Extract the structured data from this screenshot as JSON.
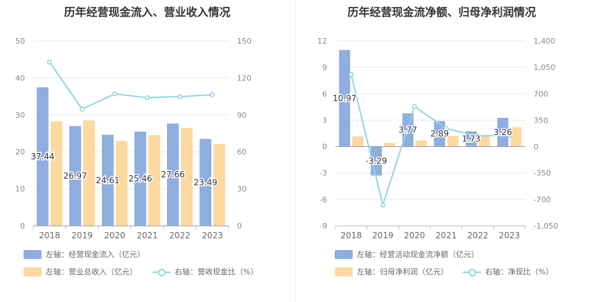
{
  "titles": {
    "left": "历年经营现金流入、营业收入情况",
    "right": "历年经营现金流净额、归母净利润情况"
  },
  "colors": {
    "bar_blue": "#8eaee0",
    "bar_orange": "#fdd9a0",
    "line_cyan": "#8fd6dd",
    "axis_text": "#888888",
    "grid": "#e8e8ee"
  },
  "legend": {
    "left": [
      "左轴：经营现金流入（亿元）",
      "左轴：营业总收入（亿元）",
      "右轴：营收现金比（%）"
    ],
    "right": [
      "左轴：经营活动现金流净额（亿元）",
      "左轴：归母净利润（亿元）",
      "右轴：净现比（%）"
    ]
  },
  "chart_data": [
    {
      "type": "bar",
      "title": "历年经营现金流入、营业收入情况",
      "categories": [
        "2018",
        "2019",
        "2020",
        "2021",
        "2022",
        "2023"
      ],
      "left_axis": {
        "ylim": [
          0,
          50
        ],
        "ticks": [
          "0",
          "10",
          "20",
          "30",
          "40",
          "50"
        ]
      },
      "right_axis": {
        "ylim": [
          0,
          150
        ],
        "ticks": [
          "0",
          "30",
          "60",
          "90",
          "120",
          "150"
        ]
      },
      "series": [
        {
          "name": "左轴：经营现金流入（亿元）",
          "kind": "bar",
          "axis": "left",
          "values": [
            37.44,
            26.97,
            24.61,
            25.46,
            27.66,
            23.49
          ],
          "labels": [
            "37.44",
            "26.97",
            "24.61",
            "25.46",
            "27.66",
            "23.49"
          ]
        },
        {
          "name": "左轴：营业总收入（亿元）",
          "kind": "bar",
          "axis": "left",
          "values": [
            28.2,
            28.5,
            23.0,
            24.5,
            26.4,
            22.1
          ]
        },
        {
          "name": "右轴：营收现金比（%）",
          "kind": "line",
          "axis": "right",
          "values": [
            132.8,
            94.6,
            107.0,
            103.9,
            104.8,
            106.3
          ]
        }
      ]
    },
    {
      "type": "bar",
      "title": "历年经营现金流净额、归母净利润情况",
      "categories": [
        "2018",
        "2019",
        "2020",
        "2021",
        "2022",
        "2023"
      ],
      "left_axis": {
        "ylim": [
          -9,
          12
        ],
        "ticks": [
          "-9",
          "-6",
          "-3",
          "0",
          "3",
          "6",
          "9",
          "12"
        ]
      },
      "right_axis": {
        "ylim": [
          -1050,
          1400
        ],
        "ticks": [
          "-1,050",
          "-700",
          "-350",
          "0",
          "350",
          "700",
          "1,050",
          "1,400"
        ]
      },
      "series": [
        {
          "name": "左轴：经营活动现金流净额（亿元）",
          "kind": "bar",
          "axis": "left",
          "values": [
            10.97,
            -3.29,
            3.77,
            2.89,
            1.73,
            3.26
          ],
          "labels": [
            "10.97",
            "-3.29",
            "3.77",
            "2.89",
            "1.73",
            "3.26"
          ]
        },
        {
          "name": "左轴：归母净利润（亿元）",
          "kind": "bar",
          "axis": "left",
          "values": [
            1.15,
            0.42,
            0.7,
            1.2,
            1.25,
            2.2
          ]
        },
        {
          "name": "右轴：净现比（%）",
          "kind": "line",
          "axis": "right",
          "values": [
            955,
            -775,
            530,
            240,
            140,
            150
          ]
        }
      ]
    }
  ]
}
